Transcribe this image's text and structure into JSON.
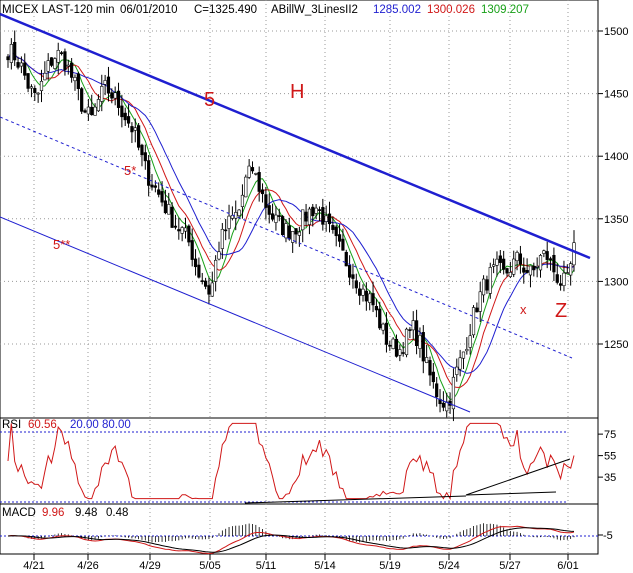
{
  "header": {
    "symbol": "MICEX LAST-120 min",
    "date": "06/01/2010",
    "close": "C=1325.490",
    "indicator": "ABillW_3LinesII2",
    "ind_v1": "1285.002",
    "ind_v2": "1300.026",
    "ind_v3": "1309.207"
  },
  "colors": {
    "blue": "#1f1fd0",
    "red": "#d01818",
    "green": "#18a018",
    "grid": "#999999",
    "text": "#000000"
  },
  "annotations": {
    "wave5": "5",
    "head": "H",
    "wave5star": "5*",
    "wave5dstar": "5**",
    "x": "x",
    "z": "Z"
  },
  "rsi": {
    "label": "RSI",
    "value": "60.56",
    "lower": "20.00",
    "upper": "80.00"
  },
  "macd": {
    "label": "MACD",
    "v1": "9.96",
    "v2": "9.48",
    "v3": "0.48"
  },
  "chart_data": {
    "type": "candlestick",
    "x_ticks": [
      "4/21",
      "4/26",
      "4/29",
      "5/05",
      "5/11",
      "5/14",
      "5/19",
      "5/24",
      "5/27",
      "6/01"
    ],
    "y_ticks": [
      1250,
      1300,
      1350,
      1400,
      1450,
      1500
    ],
    "ylim": [
      1195,
      1520
    ],
    "rsi_ticks": [
      35,
      55,
      75
    ],
    "rsi_ylim": [
      10,
      90
    ],
    "macd_ticks": [
      -5
    ],
    "price_path": [
      1485,
      1480,
      1470,
      1455,
      1445,
      1460,
      1475,
      1482,
      1478,
      1465,
      1450,
      1435,
      1430,
      1445,
      1455,
      1448,
      1440,
      1430,
      1420,
      1400,
      1385,
      1375,
      1365,
      1355,
      1345,
      1340,
      1330,
      1310,
      1300,
      1290,
      1325,
      1340,
      1350,
      1355,
      1380,
      1390,
      1375,
      1360,
      1350,
      1345,
      1340,
      1342,
      1348,
      1355,
      1360,
      1352,
      1340,
      1330,
      1320,
      1310,
      1300,
      1290,
      1285,
      1270,
      1255,
      1248,
      1245,
      1255,
      1262,
      1250,
      1230,
      1215,
      1205,
      1202,
      1225,
      1240,
      1260,
      1280,
      1295,
      1305,
      1310,
      1305,
      1312,
      1318,
      1310,
      1305,
      1318,
      1322,
      1310,
      1300,
      1298,
      1325
    ]
  }
}
